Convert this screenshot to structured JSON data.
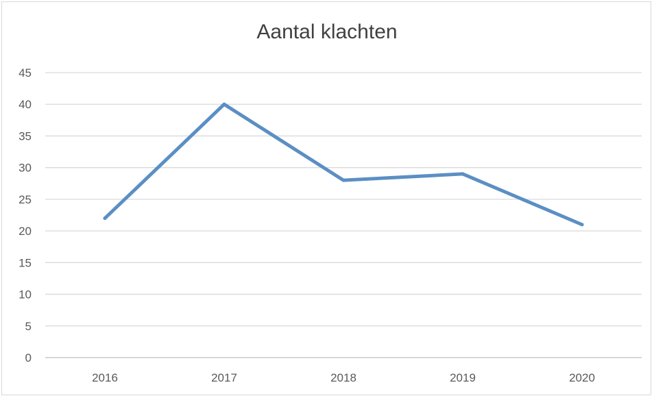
{
  "chart_data": {
    "type": "line",
    "title": "Aantal klachten",
    "xlabel": "",
    "ylabel": "",
    "categories": [
      "2016",
      "2017",
      "2018",
      "2019",
      "2020"
    ],
    "series": [
      {
        "values": [
          22,
          40,
          28,
          29,
          21
        ]
      }
    ],
    "ylim": [
      0,
      45
    ],
    "yticks": [
      0,
      5,
      10,
      15,
      20,
      25,
      30,
      35,
      40,
      45
    ],
    "grid": true,
    "legend": "none",
    "colors": {
      "line": "#5b8fc4",
      "grid": "#d9d9d9",
      "axis": "#bfbfbf",
      "text": "#595959"
    }
  }
}
